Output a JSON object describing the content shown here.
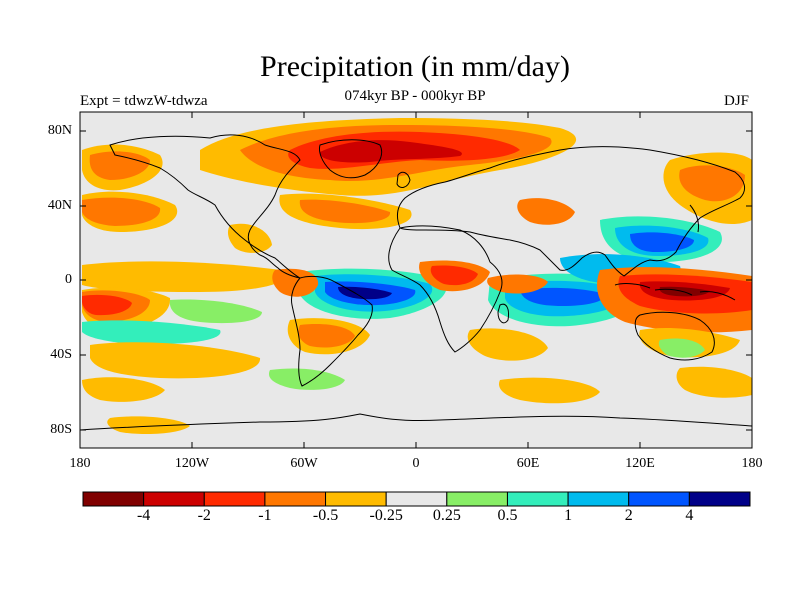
{
  "title": "Precipitation (in mm/day)",
  "subtitle": "074kyr BP - 000kyr BP",
  "left_label": "Expt = tdwzW-tdwza",
  "right_label": "DJF",
  "map": {
    "type": "filled-contour-map",
    "projection": "cylindrical-equidistant",
    "lon_range": [
      -180,
      180
    ],
    "lat_range": [
      -90,
      90
    ],
    "background_color": "#e8e8e8",
    "coastline_color": "#000000",
    "y_ticks": [
      "80N",
      "40N",
      "0",
      "40S",
      "80S"
    ],
    "x_ticks": [
      "180",
      "120W",
      "60W",
      "0",
      "60E",
      "120E",
      "180"
    ]
  },
  "colorbar": {
    "colors": [
      "#800000",
      "#cc0000",
      "#ff2a00",
      "#ff7700",
      "#ffbb00",
      "#e8e8e8",
      "#88ee66",
      "#33eebb",
      "#00bbee",
      "#0055ff",
      "#000088"
    ],
    "labels": [
      "-4",
      "-2",
      "-1",
      "-0.5",
      "-0.25",
      "0.25",
      "0.5",
      "1",
      "2",
      "4"
    ]
  }
}
